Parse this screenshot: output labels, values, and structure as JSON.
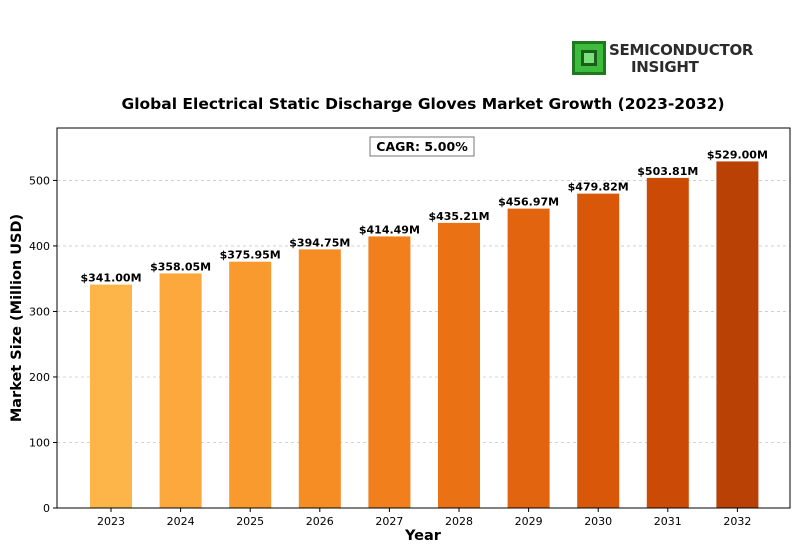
{
  "logo": {
    "line1": "SEMICONDUCTOR",
    "line2": "INSIGHT",
    "icon": "chip-icon",
    "icon_color": "#3dbb3d"
  },
  "chart_data": {
    "type": "bar",
    "title": "Global Electrical Static Discharge Gloves Market Growth (2023-2032)",
    "xlabel": "Year",
    "ylabel": "Market Size (Million USD)",
    "categories": [
      "2023",
      "2024",
      "2025",
      "2026",
      "2027",
      "2028",
      "2029",
      "2030",
      "2031",
      "2032"
    ],
    "values": [
      341.0,
      358.05,
      375.95,
      394.75,
      414.49,
      435.21,
      456.97,
      479.82,
      503.81,
      529.0
    ],
    "data_labels": [
      "$341.00M",
      "$358.05M",
      "$375.95M",
      "$394.75M",
      "$414.49M",
      "$435.21M",
      "$456.97M",
      "$479.82M",
      "$503.81M",
      "$529.00M"
    ],
    "bar_colors": [
      "#fdb54a",
      "#fca83c",
      "#f99a2e",
      "#f58c24",
      "#f07f1c",
      "#ea7114",
      "#e2640e",
      "#d85709",
      "#cb4a06",
      "#ba4105"
    ],
    "ylim": [
      0,
      580
    ],
    "yticks": [
      0,
      100,
      200,
      300,
      400,
      500
    ],
    "grid": "y-dashed",
    "annotation": "CAGR: 5.00%"
  }
}
